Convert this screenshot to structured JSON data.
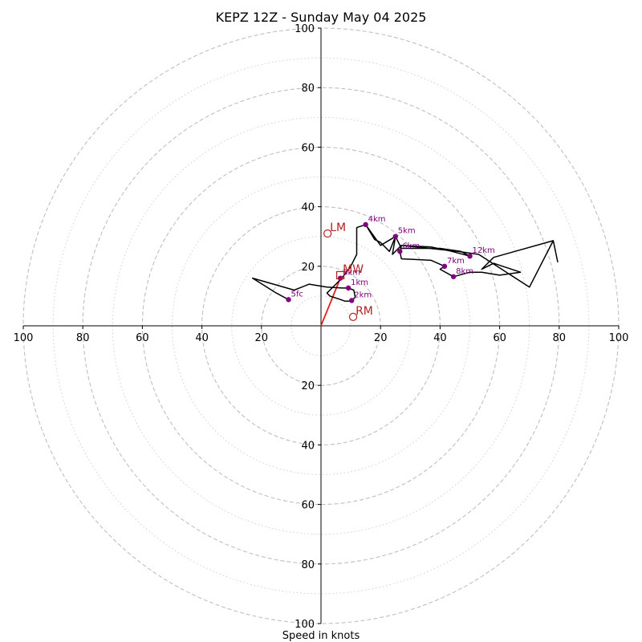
{
  "chart_data": {
    "type": "line",
    "title": "KEPZ 12Z - Sunday May 04 2025",
    "xlabel": "Speed in knots",
    "xlim": [
      -100,
      100
    ],
    "ylim": [
      -100,
      100
    ],
    "rings_major": [
      20,
      40,
      60,
      80,
      100
    ],
    "rings_minor": [
      10,
      30,
      50,
      70,
      90
    ],
    "x_ticks": [
      {
        "value": -100,
        "label": "100"
      },
      {
        "value": -80,
        "label": "80"
      },
      {
        "value": -60,
        "label": "60"
      },
      {
        "value": -40,
        "label": "40"
      },
      {
        "value": -20,
        "label": "20"
      },
      {
        "value": 20,
        "label": "20"
      },
      {
        "value": 40,
        "label": "40"
      },
      {
        "value": 60,
        "label": "60"
      },
      {
        "value": 80,
        "label": "80"
      },
      {
        "value": 100,
        "label": "100"
      }
    ],
    "y_ticks": [
      {
        "value": 100,
        "label": "100"
      },
      {
        "value": 80,
        "label": "80"
      },
      {
        "value": 60,
        "label": "60"
      },
      {
        "value": 40,
        "label": "40"
      },
      {
        "value": 20,
        "label": "20"
      },
      {
        "value": -20,
        "label": "20"
      },
      {
        "value": -40,
        "label": "40"
      },
      {
        "value": -60,
        "label": "60"
      },
      {
        "value": -80,
        "label": "80"
      },
      {
        "value": -100,
        "label": "100"
      }
    ],
    "hodograph": [
      [
        -10.9,
        8.8
      ],
      [
        -15,
        11
      ],
      [
        -23,
        16
      ],
      [
        -9,
        12
      ],
      [
        -4,
        14
      ],
      [
        2,
        13
      ],
      [
        7,
        12.7
      ],
      [
        9.2,
        12.7
      ],
      [
        11,
        12
      ],
      [
        11.5,
        9.6
      ],
      [
        10,
        8.3
      ],
      [
        8,
        8.3
      ],
      [
        6,
        9
      ],
      [
        3,
        10
      ],
      [
        2,
        11
      ],
      [
        3,
        12
      ],
      [
        5,
        14
      ],
      [
        7,
        16
      ],
      [
        10,
        20
      ],
      [
        12,
        24
      ],
      [
        12,
        33
      ],
      [
        15,
        34
      ],
      [
        18,
        29
      ],
      [
        20,
        28
      ],
      [
        23,
        25
      ],
      [
        25,
        30
      ],
      [
        24,
        24
      ],
      [
        27,
        27
      ],
      [
        26.5,
        25
      ],
      [
        27,
        22.5
      ],
      [
        37,
        22
      ],
      [
        41.5,
        20
      ],
      [
        40,
        19
      ],
      [
        44.5,
        16.5
      ],
      [
        50,
        18
      ],
      [
        54,
        18
      ],
      [
        60,
        17
      ],
      [
        67,
        18
      ],
      [
        61,
        20
      ],
      [
        58,
        21
      ],
      [
        54,
        19
      ],
      [
        58,
        23
      ],
      [
        78,
        28.6
      ],
      [
        79.5,
        21.5
      ],
      [
        78,
        28.6
      ],
      [
        70,
        13
      ],
      [
        53,
        24
      ],
      [
        46,
        25
      ],
      [
        27,
        27
      ],
      [
        37,
        26.5
      ],
      [
        44,
        25
      ],
      [
        50,
        23.4
      ],
      [
        47,
        25
      ],
      [
        40,
        26
      ],
      [
        33,
        26
      ],
      [
        27,
        26
      ],
      [
        25,
        30
      ],
      [
        20,
        27
      ],
      [
        15,
        34
      ]
    ],
    "height_points": [
      {
        "label": "5fc",
        "x": -10.9,
        "y": 8.8
      },
      {
        "label": "1km",
        "x": 9.2,
        "y": 12.7
      },
      {
        "label": "3km",
        "x": 6.5,
        "y": 16
      },
      {
        "label": "2km",
        "x": 10.3,
        "y": 8.5
      },
      {
        "label": "4km",
        "x": 15,
        "y": 34
      },
      {
        "label": "5km",
        "x": 25,
        "y": 30
      },
      {
        "label": "6km",
        "x": 26.5,
        "y": 25
      },
      {
        "label": "7km",
        "x": 41.5,
        "y": 20
      },
      {
        "label": "8km",
        "x": 44.5,
        "y": 16.5
      },
      {
        "label": "12km",
        "x": 50,
        "y": 23.4
      }
    ],
    "markers": [
      {
        "label": "LM",
        "shape": "circle",
        "x": 2.2,
        "y": 31
      },
      {
        "label": "RM",
        "shape": "circle",
        "x": 10.8,
        "y": 3
      },
      {
        "label": "MW",
        "shape": "square",
        "x": 6.5,
        "y": 17
      }
    ],
    "shear_vector": {
      "from": [
        0,
        0
      ],
      "to": [
        6.5,
        16
      ]
    },
    "colors": {
      "hodograph": "#000000",
      "height_points": "#800080",
      "markers": "#b22222",
      "shear_vector": "#e3211c",
      "rings": "#bfbfbf"
    }
  }
}
